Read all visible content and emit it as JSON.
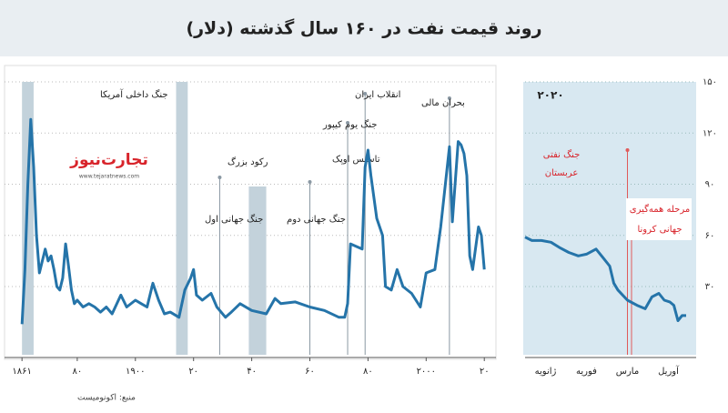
{
  "title": "روند قیمت نفت در ۱۶۰ سال گذشته (دلار)",
  "source": "منبع: اکونومیست",
  "logo": {
    "name": "تجارت‌نیوز",
    "url": "www.tejaratnews.com"
  },
  "chart_data": [
    {
      "type": "line",
      "color": "#2574a9",
      "x": [
        1861,
        1862,
        1863,
        1864,
        1865,
        1866,
        1867,
        1868,
        1869,
        1870,
        1871,
        1872,
        1873,
        1874,
        1875,
        1876,
        1877,
        1878,
        1879,
        1880,
        1882,
        1884,
        1886,
        1888,
        1890,
        1892,
        1895,
        1897,
        1900,
        1902,
        1904,
        1906,
        1908,
        1910,
        1912,
        1915,
        1917,
        1919,
        1920,
        1921,
        1923,
        1926,
        1928,
        1931,
        1933,
        1936,
        1940,
        1945,
        1948,
        1950,
        1955,
        1960,
        1965,
        1970,
        1972,
        1973,
        1974,
        1978,
        1979,
        1980,
        1981,
        1983,
        1985,
        1986,
        1988,
        1990,
        1992,
        1995,
        1998,
        2000,
        2003,
        2005,
        2008,
        2009,
        2011,
        2012,
        2013,
        2014,
        2015,
        2016,
        2018,
        2019,
        2020
      ],
      "values": [
        8,
        40,
        90,
        128,
        100,
        60,
        38,
        45,
        52,
        45,
        48,
        40,
        30,
        28,
        35,
        55,
        42,
        28,
        20,
        22,
        18,
        20,
        18,
        15,
        18,
        14,
        25,
        18,
        22,
        20,
        18,
        32,
        22,
        14,
        15,
        12,
        28,
        35,
        40,
        25,
        22,
        26,
        18,
        12,
        15,
        20,
        16,
        14,
        23,
        20,
        21,
        18,
        16,
        12,
        12,
        20,
        55,
        52,
        100,
        110,
        95,
        70,
        60,
        30,
        28,
        40,
        30,
        26,
        18,
        38,
        40,
        65,
        112,
        68,
        115,
        113,
        108,
        95,
        48,
        40,
        65,
        60,
        40
      ],
      "xlim": [
        1855,
        2024
      ],
      "ylim": [
        -10,
        150
      ],
      "xticks": [
        {
          "value": 1861,
          "label": "۱۸۶۱"
        },
        {
          "value": 1880,
          "label": "۸۰"
        },
        {
          "value": 1900,
          "label": "۱۹۰۰"
        },
        {
          "value": 1920,
          "label": "۲۰"
        },
        {
          "value": 1940,
          "label": "۴۰"
        },
        {
          "value": 1960,
          "label": "۶۰"
        },
        {
          "value": 1980,
          "label": "۸۰"
        },
        {
          "value": 2000,
          "label": "۲۰۰۰"
        },
        {
          "value": 2020,
          "label": "۲۰"
        }
      ],
      "annotations": [
        "جنگ داخلی آمریکا",
        "جنگ جهانی اول",
        "رکود بزرگ",
        "جنگ جهانی دوم",
        "تاسیس اوپک",
        "جنگ یوم کیپور",
        "انقلاب ایران",
        "بحران مالی"
      ]
    },
    {
      "type": "line",
      "color": "#2574a9",
      "subtitle": "۲۰۲۰",
      "x": [
        1,
        6,
        13,
        20,
        26,
        33,
        40,
        46,
        53,
        58,
        63,
        66,
        69,
        76,
        83,
        89,
        94,
        99,
        103,
        107,
        110,
        113,
        116,
        119
      ],
      "values": [
        59,
        57,
        57,
        56,
        53,
        50,
        48,
        49,
        52,
        47,
        42,
        32,
        28,
        22,
        19,
        17,
        24,
        26,
        22,
        21,
        19,
        10,
        13,
        13
      ],
      "xlim": [
        1,
        121
      ],
      "ylim": [
        -10,
        150
      ],
      "xticks": [
        {
          "value": 16,
          "label": "ژانویه"
        },
        {
          "value": 46,
          "label": "فوریه"
        },
        {
          "value": 76,
          "label": "مارس"
        },
        {
          "value": 106,
          "label": "آوریل"
        }
      ],
      "yticks": [
        {
          "value": 30,
          "label": "۳۰"
        },
        {
          "value": 60,
          "label": "۶۰"
        },
        {
          "value": 90,
          "label": "۹۰"
        },
        {
          "value": 120,
          "label": "۱۲۰"
        },
        {
          "value": 150,
          "label": "۱۵۰"
        }
      ],
      "grid": true,
      "annotations": [
        "جنگ نفتی",
        "عربستان",
        "مرحله همه‌گیری",
        "جهانی کرونا"
      ]
    }
  ]
}
